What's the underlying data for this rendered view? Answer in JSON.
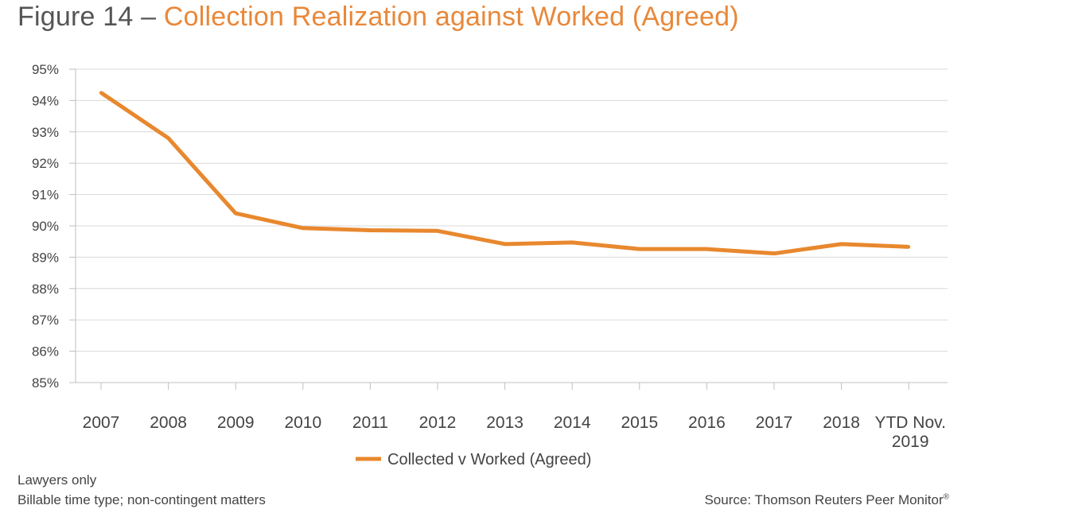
{
  "figure": {
    "prefix": "Figure 14 – ",
    "title": "Collection Realization against Worked (Agreed)"
  },
  "notes": [
    "Lawyers only",
    "Billable time type; non-contingent matters"
  ],
  "source": {
    "text": "Source: Thomson Reuters Peer Monitor",
    "mark": "®"
  },
  "colors": {
    "line": "#e8882e",
    "grid": "#d9d9d9",
    "axis": "#bfbfbf",
    "accent_text": "#e8883a"
  },
  "chart_data": {
    "type": "line",
    "title": "Collection Realization against Worked (Agreed)",
    "xlabel": "",
    "ylabel": "",
    "categories": [
      "2007",
      "2008",
      "2009",
      "2010",
      "2011",
      "2012",
      "2013",
      "2014",
      "2015",
      "2016",
      "2017",
      "2018",
      "YTD Nov.\n2019"
    ],
    "series": [
      {
        "name": "Collected v Worked (Agreed)",
        "values": [
          94.25,
          92.8,
          90.4,
          89.93,
          89.86,
          89.84,
          89.42,
          89.47,
          89.26,
          89.26,
          89.12,
          89.42,
          89.33
        ]
      }
    ],
    "ylim": [
      85,
      95
    ],
    "yticks": [
      85,
      86,
      87,
      88,
      89,
      90,
      91,
      92,
      93,
      94,
      95
    ],
    "ytick_suffix": "%",
    "grid": true,
    "legend": "bottom-center"
  }
}
